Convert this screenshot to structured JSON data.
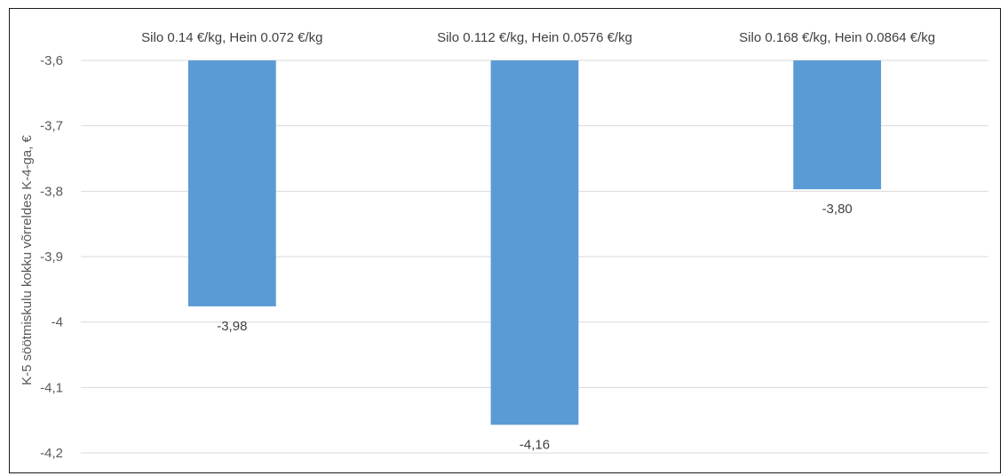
{
  "chart_data": {
    "type": "bar",
    "categories": [
      "Silo 0.14 €/kg, Hein 0.072 €/kg",
      "Silo 0.112 €/kg, Hein 0.0576 €/kg",
      "Silo 0.168 €/kg, Hein 0.0864 €/kg"
    ],
    "values": [
      -3.976,
      -4.157,
      -3.797
    ],
    "data_labels": [
      "-3,98",
      "-4,16",
      "-3,80"
    ],
    "ylabel": "K-5 söötmiskulu kokku võrreldes K-4-ga, €",
    "ylim": [
      -4.2,
      -3.6
    ],
    "yticks": [
      -3.6,
      -3.7,
      -3.8,
      -3.9,
      -4.0,
      -4.1,
      -4.2
    ],
    "ytick_labels": [
      "-3,6",
      "-3,7",
      "-3,8",
      "-3,9",
      "-4",
      "-4,1",
      "-4,2"
    ],
    "category_axis_position": "top",
    "grid": true,
    "legend": "none",
    "colors": {
      "bar": "#5b9bd5",
      "grid": "#d9d9d9",
      "text": "#404040",
      "axis_text": "#595959",
      "border": "#1a1a1a"
    }
  }
}
